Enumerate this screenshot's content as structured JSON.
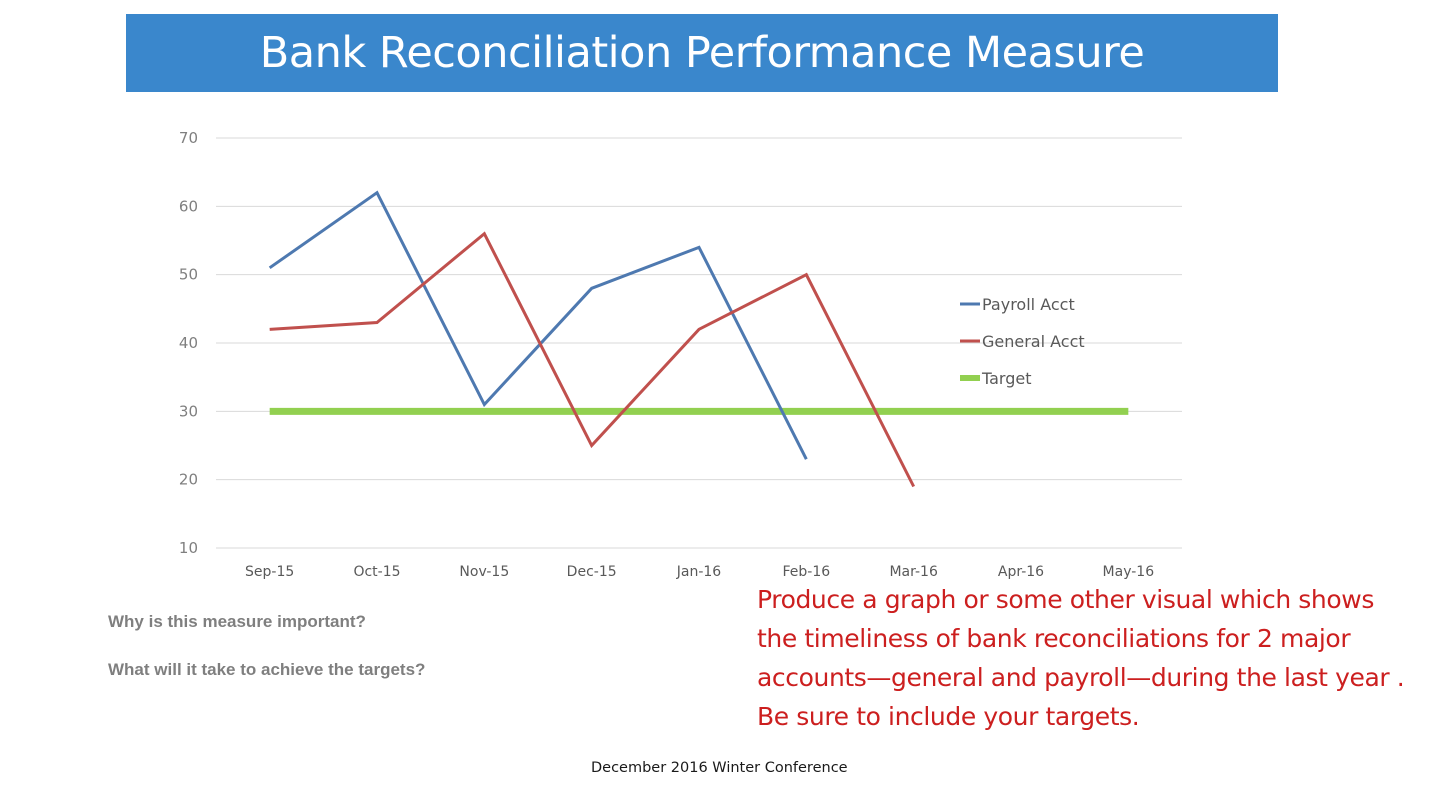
{
  "slide": {
    "title": "Bank Reconciliation Performance Measure",
    "question_1": "Why is this measure important?",
    "question_2": "What will it take to achieve the targets?",
    "instruction": "Produce a graph or some other visual which shows the timeliness of bank reconciliations for 2 major accounts—general and payroll—during the last year .  Be sure to include your targets.",
    "footer": "December 2016 Winter Conference"
  },
  "colors": {
    "title_banner": "#3a87cc",
    "instruction_text": "#cc1f1f"
  },
  "chart_data": {
    "type": "line",
    "title": "",
    "xlabel": "",
    "ylabel": "",
    "categories": [
      "Sep-15",
      "Oct-15",
      "Nov-15",
      "Dec-15",
      "Jan-16",
      "Feb-16",
      "Mar-16",
      "Apr-16",
      "May-16"
    ],
    "yticks": [
      10,
      20,
      30,
      40,
      50,
      60,
      70
    ],
    "ylim": [
      10,
      70
    ],
    "grid": true,
    "legend_position": "right",
    "series": [
      {
        "name": "Payroll Acct",
        "color": "#4e79b0",
        "values": [
          51,
          62,
          31,
          48,
          54,
          23,
          null,
          null,
          null
        ]
      },
      {
        "name": "General Acct",
        "color": "#c0504d",
        "values": [
          42,
          43,
          56,
          25,
          42,
          50,
          19,
          null,
          null
        ]
      },
      {
        "name": "Target",
        "color": "#92d050",
        "values": [
          30,
          30,
          30,
          30,
          30,
          30,
          30,
          30,
          30
        ]
      }
    ]
  }
}
